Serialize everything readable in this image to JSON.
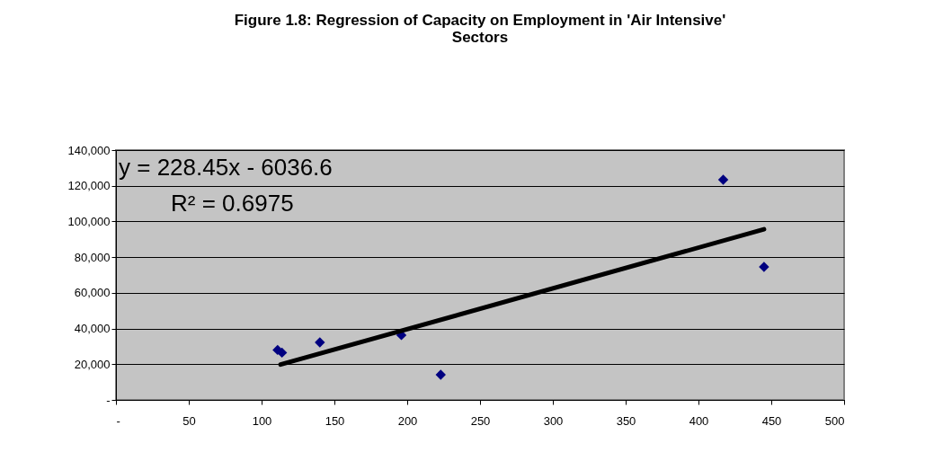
{
  "chart_data": {
    "type": "scatter",
    "title": "Figure 1.8: Regression of Capacity on Employment in 'Air Intensive' Sectors",
    "series": [
      {
        "color": "#000080",
        "x": [
          111,
          114,
          140,
          196,
          223,
          417,
          445
        ],
        "values": [
          28000,
          26500,
          32200,
          36300,
          14100,
          123400,
          74500
        ]
      },
      {
        "type": "line",
        "marker": "none",
        "color": "#000000",
        "x": [
          113,
          445
        ],
        "values": [
          19800,
          95600
        ]
      }
    ],
    "xlim": [
      0,
      500
    ],
    "xticks": [
      {
        "value": 0,
        "label": "-"
      },
      50,
      100,
      150,
      200,
      250,
      300,
      350,
      400,
      450,
      500
    ],
    "ylim": [
      0,
      140000
    ],
    "yticks": [
      {
        "value": 0,
        "label": "-"
      },
      {
        "value": 20000,
        "label": "20,000"
      },
      {
        "value": 40000,
        "label": "40,000"
      },
      {
        "value": 60000,
        "label": "60,000"
      },
      {
        "value": 80000,
        "label": "80,000"
      },
      {
        "value": 100000,
        "label": "100,000"
      },
      {
        "value": 120000,
        "label": "120,000"
      },
      {
        "value": 140000,
        "label": "140,000"
      }
    ],
    "annotations": [
      "y = 228.45x - 6036.6",
      "R² = 0.6975"
    ],
    "grid": "y",
    "marker": "diamond",
    "line_style": "solid"
  }
}
